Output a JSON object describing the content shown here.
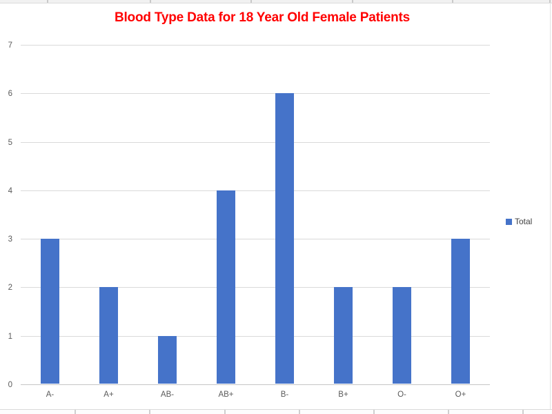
{
  "chart_data": {
    "type": "bar",
    "title": "Blood Type Data for 18 Year Old Female Patients",
    "title_color": "#ff0000",
    "categories": [
      "A-",
      "A+",
      "AB-",
      "AB+",
      "B-",
      "B+",
      "O-",
      "O+"
    ],
    "series": [
      {
        "name": "Total",
        "values": [
          3,
          2,
          1,
          4,
          6,
          2,
          2,
          3
        ],
        "color": "#4573C9"
      }
    ],
    "xlabel": "",
    "ylabel": "",
    "ylim": [
      0,
      7
    ],
    "yticks": [
      0,
      1,
      2,
      3,
      4,
      5,
      6,
      7
    ],
    "grid": true,
    "legend": {
      "position": "right",
      "entries": [
        {
          "label": "Total",
          "color": "#4573C9"
        }
      ]
    }
  },
  "colors": {
    "bar_fill": "#4573C9",
    "title_red": "#ff0000",
    "gridline": "#d9d9d9",
    "tick_label": "#595959",
    "legend_text": "#404040"
  }
}
